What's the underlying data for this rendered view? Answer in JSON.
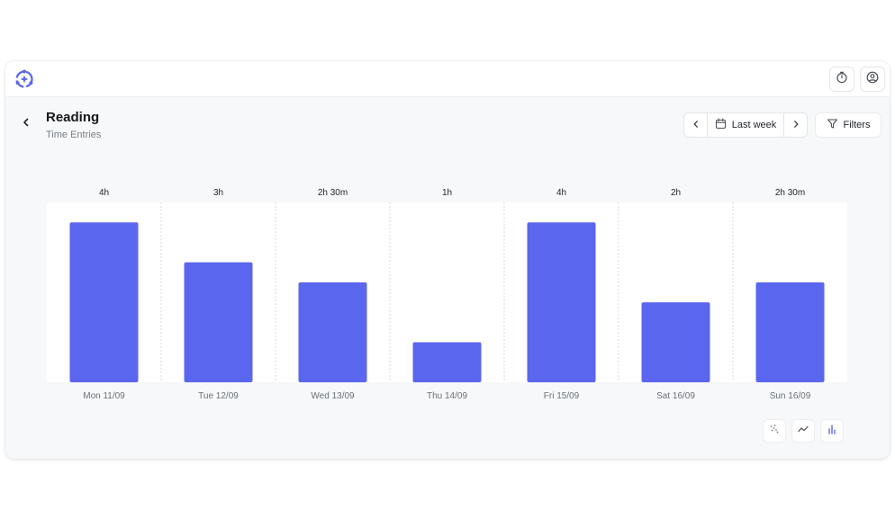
{
  "header": {
    "title": "Reading",
    "subtitle": "Time Entries"
  },
  "toolbar": {
    "date_range_label": "Last week",
    "filters_label": "Filters"
  },
  "colors": {
    "accent": "#5b66ee",
    "bar": "#5b66ee",
    "plot_bg": "#ffffff"
  },
  "icons": {
    "logo": "app-logo-icon",
    "timer": "timer-icon",
    "profile": "user-icon",
    "back": "chevron-left-icon",
    "prev": "chevron-left-icon",
    "next": "chevron-right-icon",
    "calendar": "calendar-icon",
    "filter": "filter-icon",
    "scatter": "scatter-chart-icon",
    "line": "line-chart-icon",
    "bar": "bar-chart-icon"
  },
  "chart_data": {
    "type": "bar",
    "categories": [
      "Mon 11/09",
      "Tue 12/09",
      "Wed 13/09",
      "Thu 14/09",
      "Fri 15/09",
      "Sat 16/09",
      "Sun 16/09"
    ],
    "values": [
      4,
      3,
      2.5,
      1,
      4,
      2,
      2.5
    ],
    "value_labels": [
      "4h",
      "3h",
      "2h 30m",
      "1h",
      "4h",
      "2h",
      "2h 30m"
    ],
    "unit": "hours",
    "ylim": [
      0,
      4.5
    ],
    "grid": "vertical dashed separators",
    "legend": "none"
  }
}
